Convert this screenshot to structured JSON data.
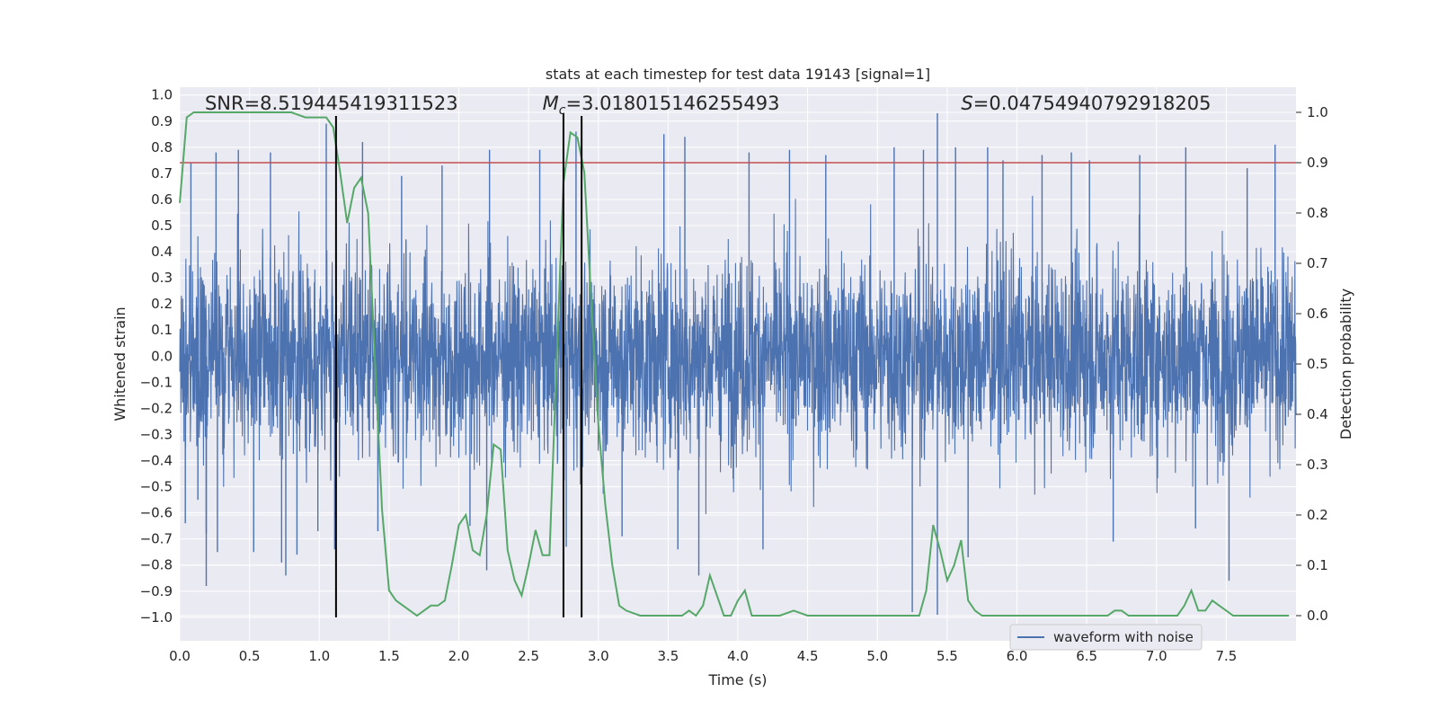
{
  "chart_data": {
    "type": "line",
    "title": "stats at each timestep for test data 19143 [signal=1]",
    "xlabel": "Time (s)",
    "ylabel_left": "Whitened strain",
    "ylabel_right": "Detection probability",
    "xlim": [
      0.0,
      8.0
    ],
    "ylim_left": [
      -1.09,
      1.03
    ],
    "ylim_right": [
      -0.05,
      1.05
    ],
    "x_ticks": [
      "0.0",
      "0.5",
      "1.0",
      "1.5",
      "2.0",
      "2.5",
      "3.0",
      "3.5",
      "4.0",
      "4.5",
      "5.0",
      "5.5",
      "6.0",
      "6.5",
      "7.0",
      "7.5"
    ],
    "x_tick_values": [
      0.0,
      0.5,
      1.0,
      1.5,
      2.0,
      2.5,
      3.0,
      3.5,
      4.0,
      4.5,
      5.0,
      5.5,
      6.0,
      6.5,
      7.0,
      7.5
    ],
    "y_left_ticks": [
      "1.0",
      "0.9",
      "0.8",
      "0.7",
      "0.6",
      "0.5",
      "0.4",
      "0.3",
      "0.2",
      "0.1",
      "0.0",
      "−0.1",
      "−0.2",
      "−0.3",
      "−0.4",
      "−0.5",
      "−0.6",
      "−0.7",
      "−0.8",
      "−0.9",
      "−1.0"
    ],
    "y_left_tick_values": [
      1.0,
      0.9,
      0.8,
      0.7,
      0.6,
      0.5,
      0.4,
      0.3,
      0.2,
      0.1,
      0.0,
      -0.1,
      -0.2,
      -0.3,
      -0.4,
      -0.5,
      -0.6,
      -0.7,
      -0.8,
      -0.9,
      -1.0
    ],
    "y_right_ticks": [
      "1.0",
      "0.9",
      "0.8",
      "0.7",
      "0.6",
      "0.5",
      "0.4",
      "0.3",
      "0.2",
      "0.1",
      "0.0"
    ],
    "y_right_tick_values": [
      1.0,
      0.9,
      0.8,
      0.7,
      0.6,
      0.5,
      0.4,
      0.3,
      0.2,
      0.1,
      0.0
    ],
    "grid": true,
    "legend_position": "lower-right",
    "series": [
      {
        "name": "waveform with noise",
        "axis": "left",
        "color": "#4c72b0",
        "envelope_typical": 0.45,
        "spikes": [
          {
            "x": 0.04,
            "y": -0.64
          },
          {
            "x": 0.08,
            "y": 0.74
          },
          {
            "x": 0.13,
            "y": -0.55
          },
          {
            "x": 0.19,
            "y": -0.68
          },
          {
            "x": 0.26,
            "y": 0.78
          },
          {
            "x": 0.27,
            "y": -0.75
          },
          {
            "x": 0.19,
            "y": -0.88
          },
          {
            "x": 0.42,
            "y": 0.79
          },
          {
            "x": 0.53,
            "y": -0.75
          },
          {
            "x": 0.65,
            "y": 0.78
          },
          {
            "x": 0.73,
            "y": -0.79
          },
          {
            "x": 0.76,
            "y": -0.84
          },
          {
            "x": 0.84,
            "y": -0.76
          },
          {
            "x": 0.99,
            "y": -0.67
          },
          {
            "x": 1.05,
            "y": 0.89
          },
          {
            "x": 1.11,
            "y": -0.74
          },
          {
            "x": 1.31,
            "y": 0.82
          },
          {
            "x": 1.42,
            "y": -0.67
          },
          {
            "x": 1.59,
            "y": 0.69
          },
          {
            "x": 1.88,
            "y": 0.73
          },
          {
            "x": 2.08,
            "y": -0.65
          },
          {
            "x": 2.22,
            "y": 0.79
          },
          {
            "x": 2.2,
            "y": -0.82
          },
          {
            "x": 2.58,
            "y": 0.79
          },
          {
            "x": 2.77,
            "y": -0.73
          },
          {
            "x": 2.84,
            "y": 0.86
          },
          {
            "x": 3.17,
            "y": -0.69
          },
          {
            "x": 3.47,
            "y": 0.85
          },
          {
            "x": 3.57,
            "y": -0.74
          },
          {
            "x": 3.62,
            "y": 0.84
          },
          {
            "x": 3.72,
            "y": -0.84
          },
          {
            "x": 4.08,
            "y": 0.78
          },
          {
            "x": 4.18,
            "y": -0.74
          },
          {
            "x": 4.37,
            "y": 0.79
          },
          {
            "x": 4.63,
            "y": 0.77
          },
          {
            "x": 5.12,
            "y": 0.8
          },
          {
            "x": 5.25,
            "y": -0.98
          },
          {
            "x": 5.33,
            "y": 0.79
          },
          {
            "x": 5.43,
            "y": 0.93
          },
          {
            "x": 5.43,
            "y": -0.99
          },
          {
            "x": 5.56,
            "y": 0.8
          },
          {
            "x": 5.65,
            "y": -0.77
          },
          {
            "x": 5.79,
            "y": 0.8
          },
          {
            "x": 5.9,
            "y": 0.75
          },
          {
            "x": 6.18,
            "y": 0.77
          },
          {
            "x": 6.39,
            "y": 0.78
          },
          {
            "x": 6.52,
            "y": 0.75
          },
          {
            "x": 6.69,
            "y": -0.71
          },
          {
            "x": 6.88,
            "y": 0.77
          },
          {
            "x": 7.21,
            "y": 0.8
          },
          {
            "x": 7.28,
            "y": -0.66
          },
          {
            "x": 7.52,
            "y": -0.86
          },
          {
            "x": 7.65,
            "y": 0.72
          },
          {
            "x": 7.85,
            "y": 0.81
          }
        ]
      },
      {
        "name": "",
        "axis": "right",
        "color": "#55a868",
        "x": [
          0.0,
          0.05,
          0.1,
          0.15,
          0.3,
          0.5,
          0.7,
          0.8,
          0.9,
          1.0,
          1.05,
          1.1,
          1.15,
          1.2,
          1.25,
          1.3,
          1.35,
          1.4,
          1.45,
          1.5,
          1.55,
          1.6,
          1.65,
          1.7,
          1.75,
          1.8,
          1.85,
          1.9,
          1.95,
          2.0,
          2.05,
          2.1,
          2.15,
          2.2,
          2.25,
          2.3,
          2.35,
          2.4,
          2.45,
          2.5,
          2.55,
          2.6,
          2.65,
          2.7,
          2.75,
          2.8,
          2.85,
          2.9,
          2.95,
          3.0,
          3.05,
          3.1,
          3.15,
          3.2,
          3.3,
          3.4,
          3.5,
          3.6,
          3.65,
          3.7,
          3.75,
          3.8,
          3.85,
          3.9,
          3.95,
          4.0,
          4.05,
          4.1,
          4.15,
          4.2,
          4.3,
          4.4,
          4.5,
          4.6,
          4.8,
          5.0,
          5.2,
          5.3,
          5.35,
          5.4,
          5.45,
          5.5,
          5.55,
          5.6,
          5.65,
          5.7,
          5.75,
          5.8,
          6.0,
          6.2,
          6.4,
          6.6,
          6.65,
          6.7,
          6.75,
          6.8,
          6.9,
          7.0,
          7.1,
          7.15,
          7.2,
          7.25,
          7.3,
          7.35,
          7.4,
          7.45,
          7.5,
          7.55,
          7.7,
          7.95
        ],
        "values": [
          0.82,
          0.99,
          1.0,
          1.0,
          1.0,
          1.0,
          1.0,
          1.0,
          0.99,
          0.99,
          0.99,
          0.97,
          0.88,
          0.78,
          0.85,
          0.87,
          0.8,
          0.5,
          0.21,
          0.05,
          0.03,
          0.02,
          0.01,
          0.0,
          0.01,
          0.02,
          0.02,
          0.03,
          0.1,
          0.18,
          0.2,
          0.13,
          0.12,
          0.2,
          0.34,
          0.33,
          0.13,
          0.07,
          0.04,
          0.1,
          0.17,
          0.12,
          0.12,
          0.5,
          0.86,
          0.96,
          0.95,
          0.88,
          0.62,
          0.38,
          0.22,
          0.1,
          0.02,
          0.01,
          0.0,
          0.0,
          0.0,
          0.0,
          0.01,
          0.0,
          0.02,
          0.08,
          0.04,
          0.0,
          0.0,
          0.03,
          0.05,
          0.0,
          0.0,
          0.0,
          0.0,
          0.01,
          0.0,
          0.0,
          0.0,
          0.0,
          0.0,
          0.0,
          0.05,
          0.18,
          0.13,
          0.07,
          0.1,
          0.15,
          0.03,
          0.01,
          0.0,
          0.0,
          0.0,
          0.0,
          0.0,
          0.0,
          0.0,
          0.01,
          0.01,
          0.0,
          0.0,
          0.0,
          0.0,
          0.0,
          0.02,
          0.05,
          0.01,
          0.01,
          0.03,
          0.02,
          0.01,
          0.0,
          0.0,
          0.0
        ]
      }
    ],
    "threshold": {
      "axis": "right",
      "y": 0.9,
      "color": "#c44e52"
    },
    "vertical_markers": [
      {
        "x": 1.12,
        "y_top": 0.92,
        "y_bottom": -1.0,
        "color": "#000000"
      },
      {
        "x": 2.75,
        "y_top": 0.93,
        "y_bottom": -1.0,
        "color": "#000000"
      },
      {
        "x": 2.88,
        "y_top": 0.92,
        "y_bottom": -1.0,
        "color": "#000000"
      }
    ],
    "annotations": [
      {
        "prefix": "SNR",
        "sub": "",
        "text": "=8.519445419311523",
        "x": 0.18
      },
      {
        "prefix": "M",
        "sub": "c",
        "text": "=3.018015146255493",
        "x": 2.6
      },
      {
        "prefix": "S",
        "sub": "",
        "text": "=0.04754940792918205",
        "x": 5.6
      }
    ],
    "legend_entries": [
      {
        "label": "waveform with noise",
        "color": "#4c72b0"
      }
    ]
  },
  "colors": {
    "plot_background": "#eaeaf2",
    "grid": "#ffffff",
    "text": "#262626"
  }
}
